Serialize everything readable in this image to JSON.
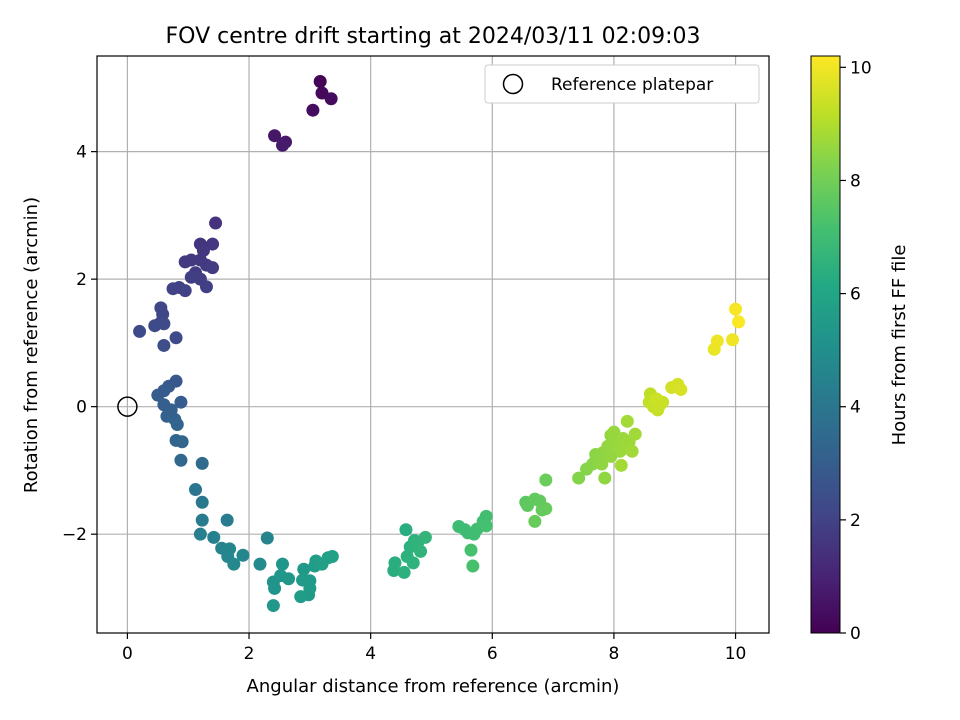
{
  "chart_data": {
    "type": "scatter",
    "title": "FOV centre drift starting at 2024/03/11 02:09:03",
    "xlabel": "Angular distance from reference (arcmin)",
    "ylabel": "Rotation from reference (arcmin)",
    "xlim": [
      -0.5,
      10.55
    ],
    "ylim": [
      -3.55,
      5.5
    ],
    "xticks": [
      "0",
      "2",
      "4",
      "6",
      "8",
      "10"
    ],
    "yticks": [
      "−2",
      "0",
      "2",
      "4"
    ],
    "grid": true,
    "legend": {
      "placement": "top-right",
      "entries": [
        "Reference platepar"
      ]
    },
    "reference_point": {
      "x": 0.0,
      "y": 0.0
    },
    "colorbar": {
      "label": "Hours from first FF file",
      "range": [
        0,
        10.2
      ],
      "ticks": [
        "0",
        "2",
        "4",
        "6",
        "8",
        "10"
      ],
      "colormap": "viridis"
    },
    "points": [
      {
        "x": 3.17,
        "y": 5.1,
        "c": 0.1
      },
      {
        "x": 3.2,
        "y": 4.92,
        "c": 0.2
      },
      {
        "x": 3.35,
        "y": 4.83,
        "c": 0.3
      },
      {
        "x": 3.05,
        "y": 4.65,
        "c": 0.35
      },
      {
        "x": 2.42,
        "y": 4.25,
        "c": 0.6
      },
      {
        "x": 2.6,
        "y": 4.15,
        "c": 0.7
      },
      {
        "x": 2.55,
        "y": 4.1,
        "c": 0.75
      },
      {
        "x": 1.45,
        "y": 2.88,
        "c": 1.5
      },
      {
        "x": 1.2,
        "y": 2.55,
        "c": 1.55
      },
      {
        "x": 1.4,
        "y": 2.55,
        "c": 1.6
      },
      {
        "x": 1.25,
        "y": 2.45,
        "c": 1.6
      },
      {
        "x": 1.05,
        "y": 2.3,
        "c": 1.65
      },
      {
        "x": 0.95,
        "y": 2.27,
        "c": 1.7
      },
      {
        "x": 1.2,
        "y": 2.3,
        "c": 1.7
      },
      {
        "x": 1.3,
        "y": 2.22,
        "c": 1.75
      },
      {
        "x": 1.4,
        "y": 2.18,
        "c": 1.8
      },
      {
        "x": 1.12,
        "y": 2.1,
        "c": 1.8
      },
      {
        "x": 1.05,
        "y": 2.03,
        "c": 1.85
      },
      {
        "x": 1.2,
        "y": 2.0,
        "c": 1.85
      },
      {
        "x": 1.3,
        "y": 1.88,
        "c": 1.9
      },
      {
        "x": 0.85,
        "y": 1.87,
        "c": 1.95
      },
      {
        "x": 0.75,
        "y": 1.85,
        "c": 2.0
      },
      {
        "x": 0.95,
        "y": 1.82,
        "c": 2.0
      },
      {
        "x": 0.55,
        "y": 1.55,
        "c": 2.1
      },
      {
        "x": 0.58,
        "y": 1.45,
        "c": 2.15
      },
      {
        "x": 0.55,
        "y": 1.32,
        "c": 2.2
      },
      {
        "x": 0.45,
        "y": 1.27,
        "c": 2.25
      },
      {
        "x": 0.6,
        "y": 1.3,
        "c": 2.25
      },
      {
        "x": 0.2,
        "y": 1.18,
        "c": 2.3
      },
      {
        "x": 0.8,
        "y": 1.08,
        "c": 2.35
      },
      {
        "x": 0.6,
        "y": 0.96,
        "c": 2.4
      },
      {
        "x": 0.8,
        "y": 0.4,
        "c": 2.8
      },
      {
        "x": 0.68,
        "y": 0.32,
        "c": 2.85
      },
      {
        "x": 0.6,
        "y": 0.25,
        "c": 2.9
      },
      {
        "x": 0.5,
        "y": 0.18,
        "c": 2.95
      },
      {
        "x": 0.88,
        "y": 0.07,
        "c": 3.0
      },
      {
        "x": 0.6,
        "y": 0.03,
        "c": 3.05
      },
      {
        "x": 0.72,
        "y": -0.05,
        "c": 3.1
      },
      {
        "x": 0.65,
        "y": -0.15,
        "c": 3.15
      },
      {
        "x": 0.78,
        "y": -0.2,
        "c": 3.2
      },
      {
        "x": 0.82,
        "y": -0.28,
        "c": 3.25
      },
      {
        "x": 0.8,
        "y": -0.53,
        "c": 3.3
      },
      {
        "x": 0.9,
        "y": -0.55,
        "c": 3.35
      },
      {
        "x": 0.88,
        "y": -0.84,
        "c": 3.45
      },
      {
        "x": 1.23,
        "y": -0.89,
        "c": 3.5
      },
      {
        "x": 1.12,
        "y": -1.3,
        "c": 4.0
      },
      {
        "x": 1.23,
        "y": -1.5,
        "c": 4.05
      },
      {
        "x": 1.23,
        "y": -1.78,
        "c": 4.2
      },
      {
        "x": 1.64,
        "y": -1.78,
        "c": 4.25
      },
      {
        "x": 1.2,
        "y": -2.0,
        "c": 4.35
      },
      {
        "x": 1.42,
        "y": -2.05,
        "c": 4.4
      },
      {
        "x": 2.3,
        "y": -2.06,
        "c": 4.5
      },
      {
        "x": 1.55,
        "y": -2.22,
        "c": 4.55
      },
      {
        "x": 1.68,
        "y": -2.23,
        "c": 4.6
      },
      {
        "x": 1.9,
        "y": -2.33,
        "c": 4.65
      },
      {
        "x": 1.65,
        "y": -2.35,
        "c": 4.7
      },
      {
        "x": 1.75,
        "y": -2.47,
        "c": 4.75
      },
      {
        "x": 2.18,
        "y": -2.47,
        "c": 4.8
      },
      {
        "x": 2.4,
        "y": -2.75,
        "c": 5.2
      },
      {
        "x": 2.42,
        "y": -2.85,
        "c": 5.25
      },
      {
        "x": 2.55,
        "y": -2.47,
        "c": 5.3
      },
      {
        "x": 2.52,
        "y": -2.65,
        "c": 5.3
      },
      {
        "x": 2.65,
        "y": -2.7,
        "c": 5.35
      },
      {
        "x": 2.4,
        "y": -3.12,
        "c": 5.4
      },
      {
        "x": 2.9,
        "y": -2.55,
        "c": 5.45
      },
      {
        "x": 2.88,
        "y": -2.72,
        "c": 5.5
      },
      {
        "x": 3.0,
        "y": -2.73,
        "c": 5.5
      },
      {
        "x": 3.0,
        "y": -2.85,
        "c": 5.55
      },
      {
        "x": 2.98,
        "y": -2.95,
        "c": 5.55
      },
      {
        "x": 2.85,
        "y": -2.98,
        "c": 5.6
      },
      {
        "x": 3.08,
        "y": -2.5,
        "c": 5.6
      },
      {
        "x": 3.1,
        "y": -2.42,
        "c": 5.65
      },
      {
        "x": 3.2,
        "y": -2.47,
        "c": 5.7
      },
      {
        "x": 3.3,
        "y": -2.37,
        "c": 5.75
      },
      {
        "x": 3.37,
        "y": -2.35,
        "c": 5.8
      },
      {
        "x": 4.58,
        "y": -1.93,
        "c": 6.3
      },
      {
        "x": 4.4,
        "y": -2.45,
        "c": 6.35
      },
      {
        "x": 4.38,
        "y": -2.57,
        "c": 6.4
      },
      {
        "x": 4.55,
        "y": -2.6,
        "c": 6.45
      },
      {
        "x": 4.6,
        "y": -2.35,
        "c": 6.5
      },
      {
        "x": 4.65,
        "y": -2.2,
        "c": 6.5
      },
      {
        "x": 4.7,
        "y": -2.45,
        "c": 6.55
      },
      {
        "x": 4.72,
        "y": -2.1,
        "c": 6.55
      },
      {
        "x": 4.78,
        "y": -2.12,
        "c": 6.6
      },
      {
        "x": 4.82,
        "y": -2.27,
        "c": 6.6
      },
      {
        "x": 4.9,
        "y": -2.05,
        "c": 6.65
      },
      {
        "x": 5.45,
        "y": -1.88,
        "c": 6.95
      },
      {
        "x": 5.55,
        "y": -1.93,
        "c": 7.0
      },
      {
        "x": 5.6,
        "y": -1.98,
        "c": 7.0
      },
      {
        "x": 5.7,
        "y": -2.0,
        "c": 7.05
      },
      {
        "x": 5.75,
        "y": -1.92,
        "c": 7.05
      },
      {
        "x": 5.85,
        "y": -1.8,
        "c": 7.1
      },
      {
        "x": 5.9,
        "y": -1.72,
        "c": 7.1
      },
      {
        "x": 5.9,
        "y": -1.87,
        "c": 7.15
      },
      {
        "x": 5.65,
        "y": -2.25,
        "c": 7.2
      },
      {
        "x": 5.68,
        "y": -2.5,
        "c": 7.2
      },
      {
        "x": 6.55,
        "y": -1.5,
        "c": 7.6
      },
      {
        "x": 6.58,
        "y": -1.55,
        "c": 7.65
      },
      {
        "x": 6.7,
        "y": -1.45,
        "c": 7.7
      },
      {
        "x": 6.78,
        "y": -1.48,
        "c": 7.7
      },
      {
        "x": 6.82,
        "y": -1.62,
        "c": 7.75
      },
      {
        "x": 6.88,
        "y": -1.6,
        "c": 7.8
      },
      {
        "x": 6.7,
        "y": -1.8,
        "c": 7.8
      },
      {
        "x": 6.88,
        "y": -1.15,
        "c": 7.85
      },
      {
        "x": 7.42,
        "y": -1.12,
        "c": 8.3
      },
      {
        "x": 7.55,
        "y": -0.98,
        "c": 8.35
      },
      {
        "x": 7.65,
        "y": -0.9,
        "c": 8.4
      },
      {
        "x": 7.7,
        "y": -0.75,
        "c": 8.4
      },
      {
        "x": 7.75,
        "y": -0.8,
        "c": 8.45
      },
      {
        "x": 7.82,
        "y": -0.72,
        "c": 8.45
      },
      {
        "x": 7.8,
        "y": -0.9,
        "c": 8.5
      },
      {
        "x": 7.85,
        "y": -1.12,
        "c": 8.5
      },
      {
        "x": 7.9,
        "y": -0.62,
        "c": 8.55
      },
      {
        "x": 7.95,
        "y": -0.45,
        "c": 8.55
      },
      {
        "x": 8.0,
        "y": -0.4,
        "c": 8.6
      },
      {
        "x": 8.02,
        "y": -0.55,
        "c": 8.6
      },
      {
        "x": 8.1,
        "y": -0.7,
        "c": 8.65
      },
      {
        "x": 8.15,
        "y": -0.5,
        "c": 8.65
      },
      {
        "x": 8.2,
        "y": -0.65,
        "c": 8.7
      },
      {
        "x": 8.25,
        "y": -0.55,
        "c": 8.7
      },
      {
        "x": 8.3,
        "y": -0.7,
        "c": 8.75
      },
      {
        "x": 8.35,
        "y": -0.43,
        "c": 8.75
      },
      {
        "x": 8.22,
        "y": -0.23,
        "c": 8.8
      },
      {
        "x": 8.12,
        "y": -0.92,
        "c": 8.8
      },
      {
        "x": 7.95,
        "y": -0.78,
        "c": 8.55
      },
      {
        "x": 8.6,
        "y": 0.2,
        "c": 9.2
      },
      {
        "x": 8.58,
        "y": 0.07,
        "c": 9.25
      },
      {
        "x": 8.65,
        "y": 0.0,
        "c": 9.3
      },
      {
        "x": 8.72,
        "y": -0.05,
        "c": 9.3
      },
      {
        "x": 8.75,
        "y": 0.02,
        "c": 9.35
      },
      {
        "x": 8.8,
        "y": 0.07,
        "c": 9.35
      },
      {
        "x": 8.7,
        "y": 0.12,
        "c": 9.4
      },
      {
        "x": 8.95,
        "y": 0.3,
        "c": 9.5
      },
      {
        "x": 9.05,
        "y": 0.35,
        "c": 9.55
      },
      {
        "x": 9.1,
        "y": 0.27,
        "c": 9.6
      },
      {
        "x": 9.65,
        "y": 0.9,
        "c": 9.9
      },
      {
        "x": 9.7,
        "y": 1.03,
        "c": 9.95
      },
      {
        "x": 9.95,
        "y": 1.05,
        "c": 10.0
      },
      {
        "x": 10.0,
        "y": 1.53,
        "c": 10.1
      },
      {
        "x": 10.05,
        "y": 1.33,
        "c": 10.15
      }
    ]
  }
}
